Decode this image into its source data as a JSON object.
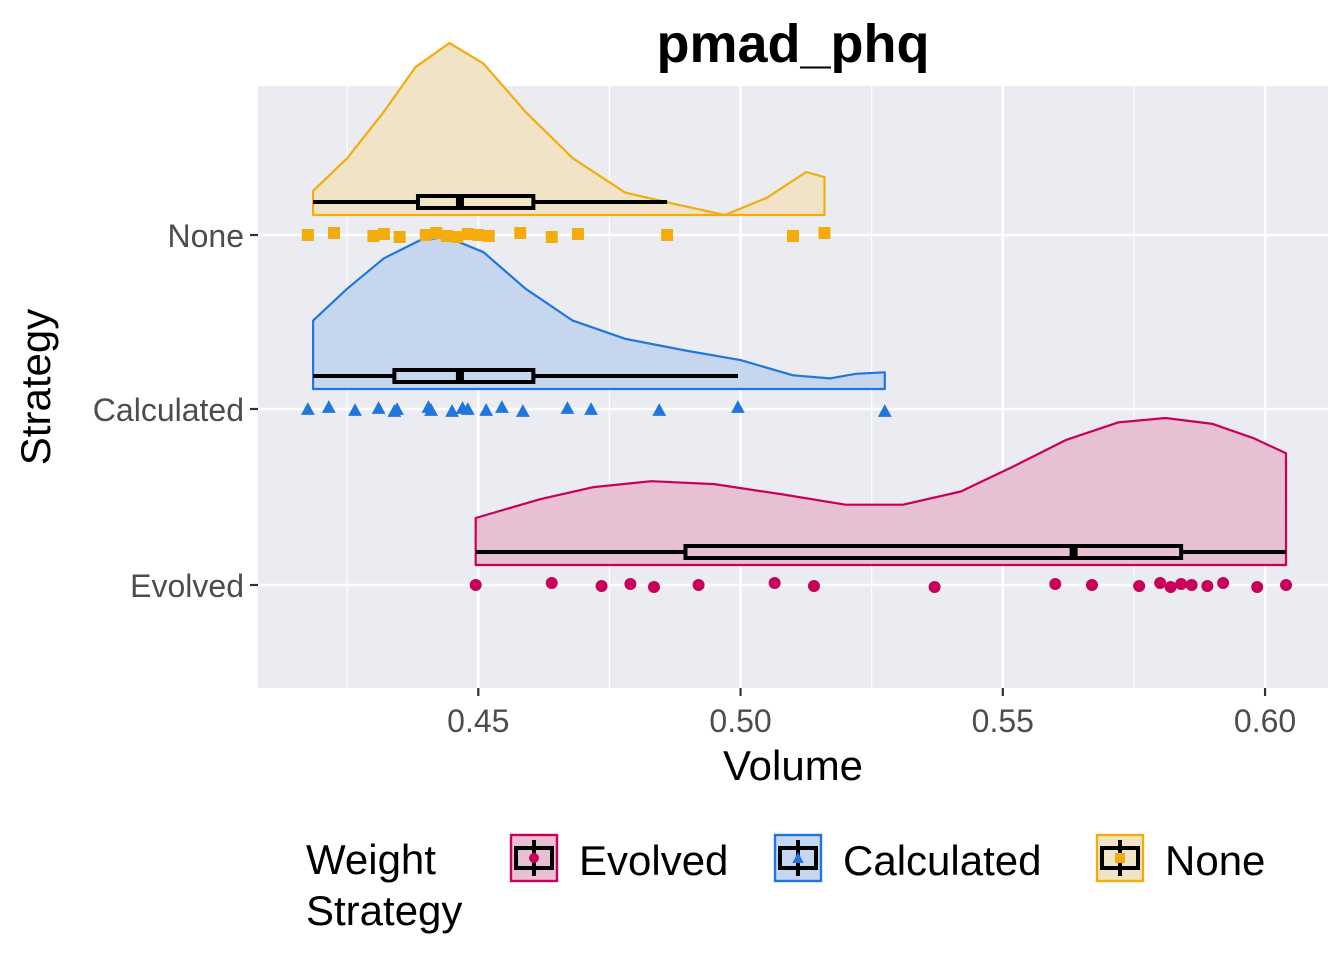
{
  "chart_data": {
    "type": "raincloud",
    "title": "pmad_phq",
    "xlabel": "Volume",
    "ylabel": "Strategy",
    "xlim": [
      0.408,
      0.612
    ],
    "x_ticks": [
      0.45,
      0.5,
      0.55,
      0.6
    ],
    "x_tick_labels": [
      "0.45",
      "0.50",
      "0.55",
      "0.60"
    ],
    "categories": [
      "None",
      "Calculated",
      "Evolved"
    ],
    "grid": true,
    "legend": {
      "title": "Weight\nStrategy",
      "title_lines": [
        "Weight",
        "Strategy"
      ],
      "placement": "bottom",
      "entries": [
        "Evolved",
        "Calculated",
        "None"
      ]
    },
    "series": [
      {
        "name": "None",
        "color": "#F4AC0C",
        "fill": "#F1E4C6",
        "marker": "square",
        "points": [
          0.4175,
          0.4225,
          0.43,
          0.432,
          0.435,
          0.44,
          0.442,
          0.444,
          0.446,
          0.448,
          0.45,
          0.452,
          0.458,
          0.464,
          0.469,
          0.486,
          0.51,
          0.516
        ],
        "box": {
          "min": 0.4185,
          "q1": 0.4385,
          "median": 0.4465,
          "q3": 0.4605,
          "max": 0.486
        },
        "density": {
          "x_min": 0.4185,
          "x_max": 0.516,
          "points": [
            [
              0.4185,
              0.14
            ],
            [
              0.425,
              0.33
            ],
            [
              0.432,
              0.6
            ],
            [
              0.438,
              0.86
            ],
            [
              0.4445,
              1.0
            ],
            [
              0.451,
              0.88
            ],
            [
              0.459,
              0.6
            ],
            [
              0.468,
              0.33
            ],
            [
              0.478,
              0.13
            ],
            [
              0.488,
              0.06
            ],
            [
              0.497,
              0.0
            ],
            [
              0.505,
              0.1
            ],
            [
              0.5125,
              0.25
            ],
            [
              0.516,
              0.22
            ]
          ]
        }
      },
      {
        "name": "Calculated",
        "color": "#1F77DD",
        "fill": "#C5D6EE",
        "marker": "triangle",
        "points": [
          0.4175,
          0.4215,
          0.4265,
          0.431,
          0.434,
          0.4345,
          0.4405,
          0.441,
          0.445,
          0.447,
          0.448,
          0.4515,
          0.4545,
          0.4585,
          0.467,
          0.4715,
          0.4845,
          0.4995,
          0.5275
        ],
        "box": {
          "min": 0.4185,
          "q1": 0.434,
          "median": 0.4465,
          "q3": 0.4605,
          "max": 0.4995
        },
        "density": {
          "x_min": 0.4185,
          "x_max": 0.5275,
          "points": [
            [
              0.4185,
              0.45
            ],
            [
              0.425,
              0.66
            ],
            [
              0.432,
              0.86
            ],
            [
              0.439,
              0.98
            ],
            [
              0.444,
              1.0
            ],
            [
              0.451,
              0.9
            ],
            [
              0.459,
              0.66
            ],
            [
              0.468,
              0.45
            ],
            [
              0.478,
              0.33
            ],
            [
              0.49,
              0.25
            ],
            [
              0.5,
              0.19
            ],
            [
              0.51,
              0.09
            ],
            [
              0.517,
              0.07
            ],
            [
              0.522,
              0.1
            ],
            [
              0.5275,
              0.11
            ]
          ]
        }
      },
      {
        "name": "Evolved",
        "color": "#C8005A",
        "fill": "#E8C0D3",
        "marker": "circle",
        "points": [
          0.4495,
          0.464,
          0.4735,
          0.479,
          0.4835,
          0.492,
          0.5065,
          0.514,
          0.537,
          0.56,
          0.567,
          0.576,
          0.58,
          0.582,
          0.584,
          0.586,
          0.589,
          0.592,
          0.5985,
          0.604
        ],
        "box": {
          "min": 0.4495,
          "q1": 0.4895,
          "median": 0.5635,
          "q3": 0.584,
          "max": 0.604
        },
        "density": {
          "x_min": 0.4495,
          "x_max": 0.604,
          "points": [
            [
              0.4495,
              0.32
            ],
            [
              0.462,
              0.45
            ],
            [
              0.472,
              0.53
            ],
            [
              0.483,
              0.57
            ],
            [
              0.495,
              0.55
            ],
            [
              0.508,
              0.48
            ],
            [
              0.52,
              0.41
            ],
            [
              0.531,
              0.41
            ],
            [
              0.542,
              0.5
            ],
            [
              0.552,
              0.67
            ],
            [
              0.562,
              0.85
            ],
            [
              0.572,
              0.97
            ],
            [
              0.581,
              1.0
            ],
            [
              0.59,
              0.96
            ],
            [
              0.598,
              0.86
            ],
            [
              0.604,
              0.76
            ]
          ]
        }
      }
    ]
  }
}
